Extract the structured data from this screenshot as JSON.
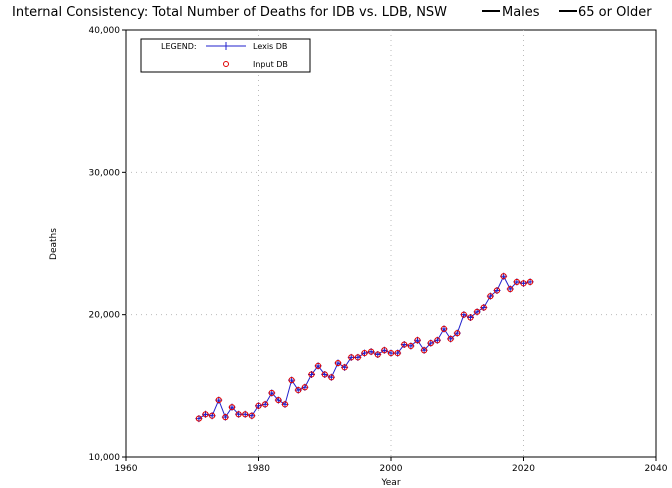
{
  "chart_data": {
    "type": "line",
    "title": "Internal Consistency: Total Number of Deaths for IDB vs. LDB, NSW",
    "title_keys": [
      "Males",
      "65 or Older"
    ],
    "xlabel": "Year",
    "ylabel": "Deaths",
    "xlim": [
      1960,
      2040
    ],
    "ylim": [
      10000,
      40000
    ],
    "x_ticks": [
      1960,
      1980,
      2000,
      2020,
      2040
    ],
    "x_tick_labels": [
      "1960",
      "1980",
      "2000",
      "2020",
      "2040"
    ],
    "y_ticks": [
      10000,
      20000,
      30000,
      40000
    ],
    "y_tick_labels": [
      "10,000",
      "20,000",
      "30,000",
      "40,000"
    ],
    "grid": true,
    "legend": {
      "title": "LEGEND:",
      "placement": "top-left",
      "entries": [
        "Lexis DB",
        "Input DB"
      ]
    },
    "x": [
      1971,
      1972,
      1973,
      1974,
      1975,
      1976,
      1977,
      1978,
      1979,
      1980,
      1981,
      1982,
      1983,
      1984,
      1985,
      1986,
      1987,
      1988,
      1989,
      1990,
      1991,
      1992,
      1993,
      1994,
      1995,
      1996,
      1997,
      1998,
      1999,
      2000,
      2001,
      2002,
      2003,
      2004,
      2005,
      2006,
      2007,
      2008,
      2009,
      2010,
      2011,
      2012,
      2013,
      2014,
      2015,
      2016,
      2017,
      2018,
      2019,
      2020,
      2021
    ],
    "series": [
      {
        "name": "Lexis DB",
        "color": "#2222cc",
        "marker": "plus",
        "values": [
          12700,
          13000,
          12900,
          14000,
          12800,
          13500,
          13000,
          13000,
          12900,
          13600,
          13700,
          14500,
          14000,
          13700,
          15400,
          14700,
          14900,
          15800,
          16400,
          15800,
          15600,
          16600,
          16300,
          17000,
          17000,
          17300,
          17400,
          17200,
          17500,
          17300,
          17300,
          17900,
          17800,
          18200,
          17500,
          18000,
          18200,
          19000,
          18300,
          18700,
          20000,
          19800,
          20200,
          20500,
          21300,
          21700,
          22700,
          21800,
          22300,
          22200,
          22300
        ]
      },
      {
        "name": "Input DB",
        "color": "#e00000",
        "marker": "circle",
        "values": [
          12700,
          13000,
          12900,
          14000,
          12800,
          13500,
          13000,
          13000,
          12900,
          13600,
          13700,
          14500,
          14000,
          13700,
          15400,
          14700,
          14900,
          15800,
          16400,
          15800,
          15600,
          16600,
          16300,
          17000,
          17000,
          17300,
          17400,
          17200,
          17500,
          17300,
          17300,
          17900,
          17800,
          18200,
          17500,
          18000,
          18200,
          19000,
          18300,
          18700,
          20000,
          19800,
          20200,
          20500,
          21300,
          21700,
          22700,
          21800,
          22300,
          22200,
          22300
        ]
      }
    ]
  }
}
